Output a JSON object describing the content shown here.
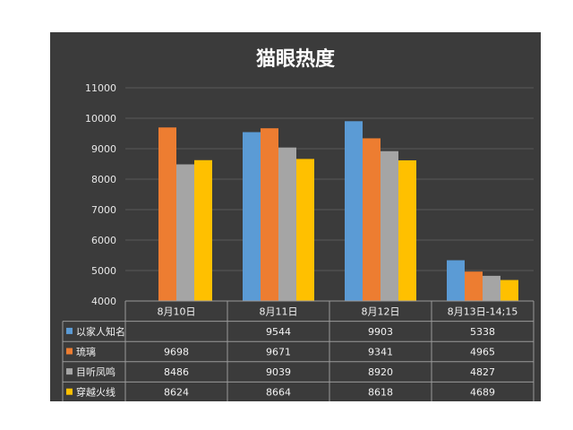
{
  "chart_data": {
    "type": "bar",
    "title": "猫眼热度",
    "categories": [
      "8月10日",
      "8月11日",
      "8月12日",
      "8月13日-14;15"
    ],
    "ylim": [
      4000,
      11000
    ],
    "yticks": [
      4000,
      5000,
      6000,
      7000,
      8000,
      9000,
      10000,
      11000
    ],
    "grid": true,
    "legend": "data-table",
    "series": [
      {
        "name": "以家人知名",
        "color": "#5b9bd5",
        "values": [
          null,
          9544,
          9903,
          5338
        ]
      },
      {
        "name": "琉璃",
        "color": "#ed7d31",
        "values": [
          9698,
          9671,
          9341,
          4965
        ]
      },
      {
        "name": "目听凤鸣",
        "color": "#a5a5a5",
        "values": [
          8486,
          9039,
          8920,
          4827
        ]
      },
      {
        "name": "穿越火线",
        "color": "#ffc000",
        "values": [
          8624,
          8664,
          8618,
          4689
        ]
      }
    ]
  }
}
